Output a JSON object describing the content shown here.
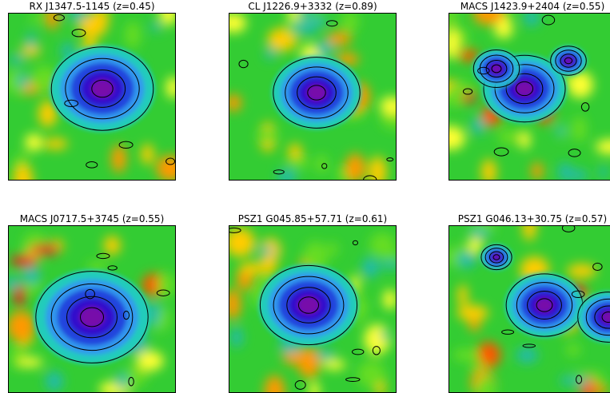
{
  "panels": [
    {
      "title": "RX J1347.5-1145 (z=0.45)"
    },
    {
      "title": "CL J1226.9+3332 (z=0.89)"
    },
    {
      "title": "MACS J1423.9+2404 (z=0.55)"
    },
    {
      "title": "MACS J0717.5+3745 (z=0.55)"
    },
    {
      "title": "PSZ1 G045.85+57.71 (z=0.61)"
    },
    {
      "title": "PSZ1 G046.13+30.75 (z=0.57)"
    }
  ]
}
